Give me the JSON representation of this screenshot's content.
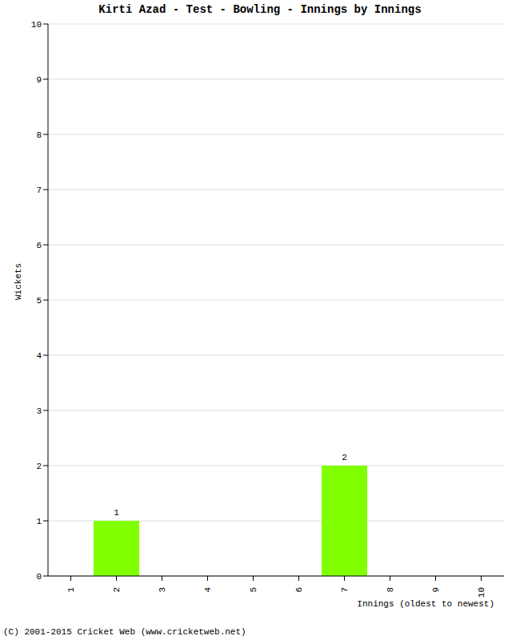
{
  "chart_data": {
    "type": "bar",
    "title": "Kirti Azad - Test - Bowling - Innings by Innings",
    "x_label": "Innings (oldest to newest)",
    "y_label": "Wickets",
    "categories": [
      "1",
      "2",
      "3",
      "4",
      "5",
      "6",
      "7",
      "8",
      "9",
      "10"
    ],
    "values": [
      0,
      1,
      0,
      0,
      0,
      0,
      2,
      0,
      0,
      0
    ],
    "color": "#80ff00",
    "ylim": [
      0,
      10
    ],
    "yticks": [
      0,
      1,
      2,
      3,
      4,
      5,
      6,
      7,
      8,
      9,
      10
    ],
    "grid": true,
    "data_labels": true,
    "annotations": [
      "(C) 2001-2015 Cricket Web (www.cricketweb.net)"
    ]
  }
}
